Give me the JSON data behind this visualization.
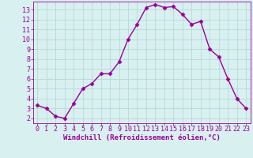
{
  "x": [
    0,
    1,
    2,
    3,
    4,
    5,
    6,
    7,
    8,
    9,
    10,
    11,
    12,
    13,
    14,
    15,
    16,
    17,
    18,
    19,
    20,
    21,
    22,
    23
  ],
  "y": [
    3.3,
    3.0,
    2.2,
    2.0,
    3.5,
    5.0,
    5.5,
    6.5,
    6.5,
    7.7,
    10.0,
    11.5,
    13.2,
    13.5,
    13.2,
    13.3,
    12.5,
    11.5,
    11.8,
    9.0,
    8.2,
    6.0,
    4.0,
    3.0
  ],
  "line_color": "#990099",
  "marker": "D",
  "markersize": 2.5,
  "linewidth": 1.0,
  "bg_color": "#d8f0f0",
  "grid_color": "#b8d8d8",
  "xlabel": "Windchill (Refroidissement éolien,°C)",
  "xlim": [
    -0.5,
    23.5
  ],
  "ylim": [
    1.5,
    13.8
  ],
  "xticks": [
    0,
    1,
    2,
    3,
    4,
    5,
    6,
    7,
    8,
    9,
    10,
    11,
    12,
    13,
    14,
    15,
    16,
    17,
    18,
    19,
    20,
    21,
    22,
    23
  ],
  "yticks": [
    2,
    3,
    4,
    5,
    6,
    7,
    8,
    9,
    10,
    11,
    12,
    13
  ],
  "axis_color": "#990099",
  "tick_color": "#990099",
  "label_fontsize": 6.5,
  "tick_fontsize": 6.0
}
